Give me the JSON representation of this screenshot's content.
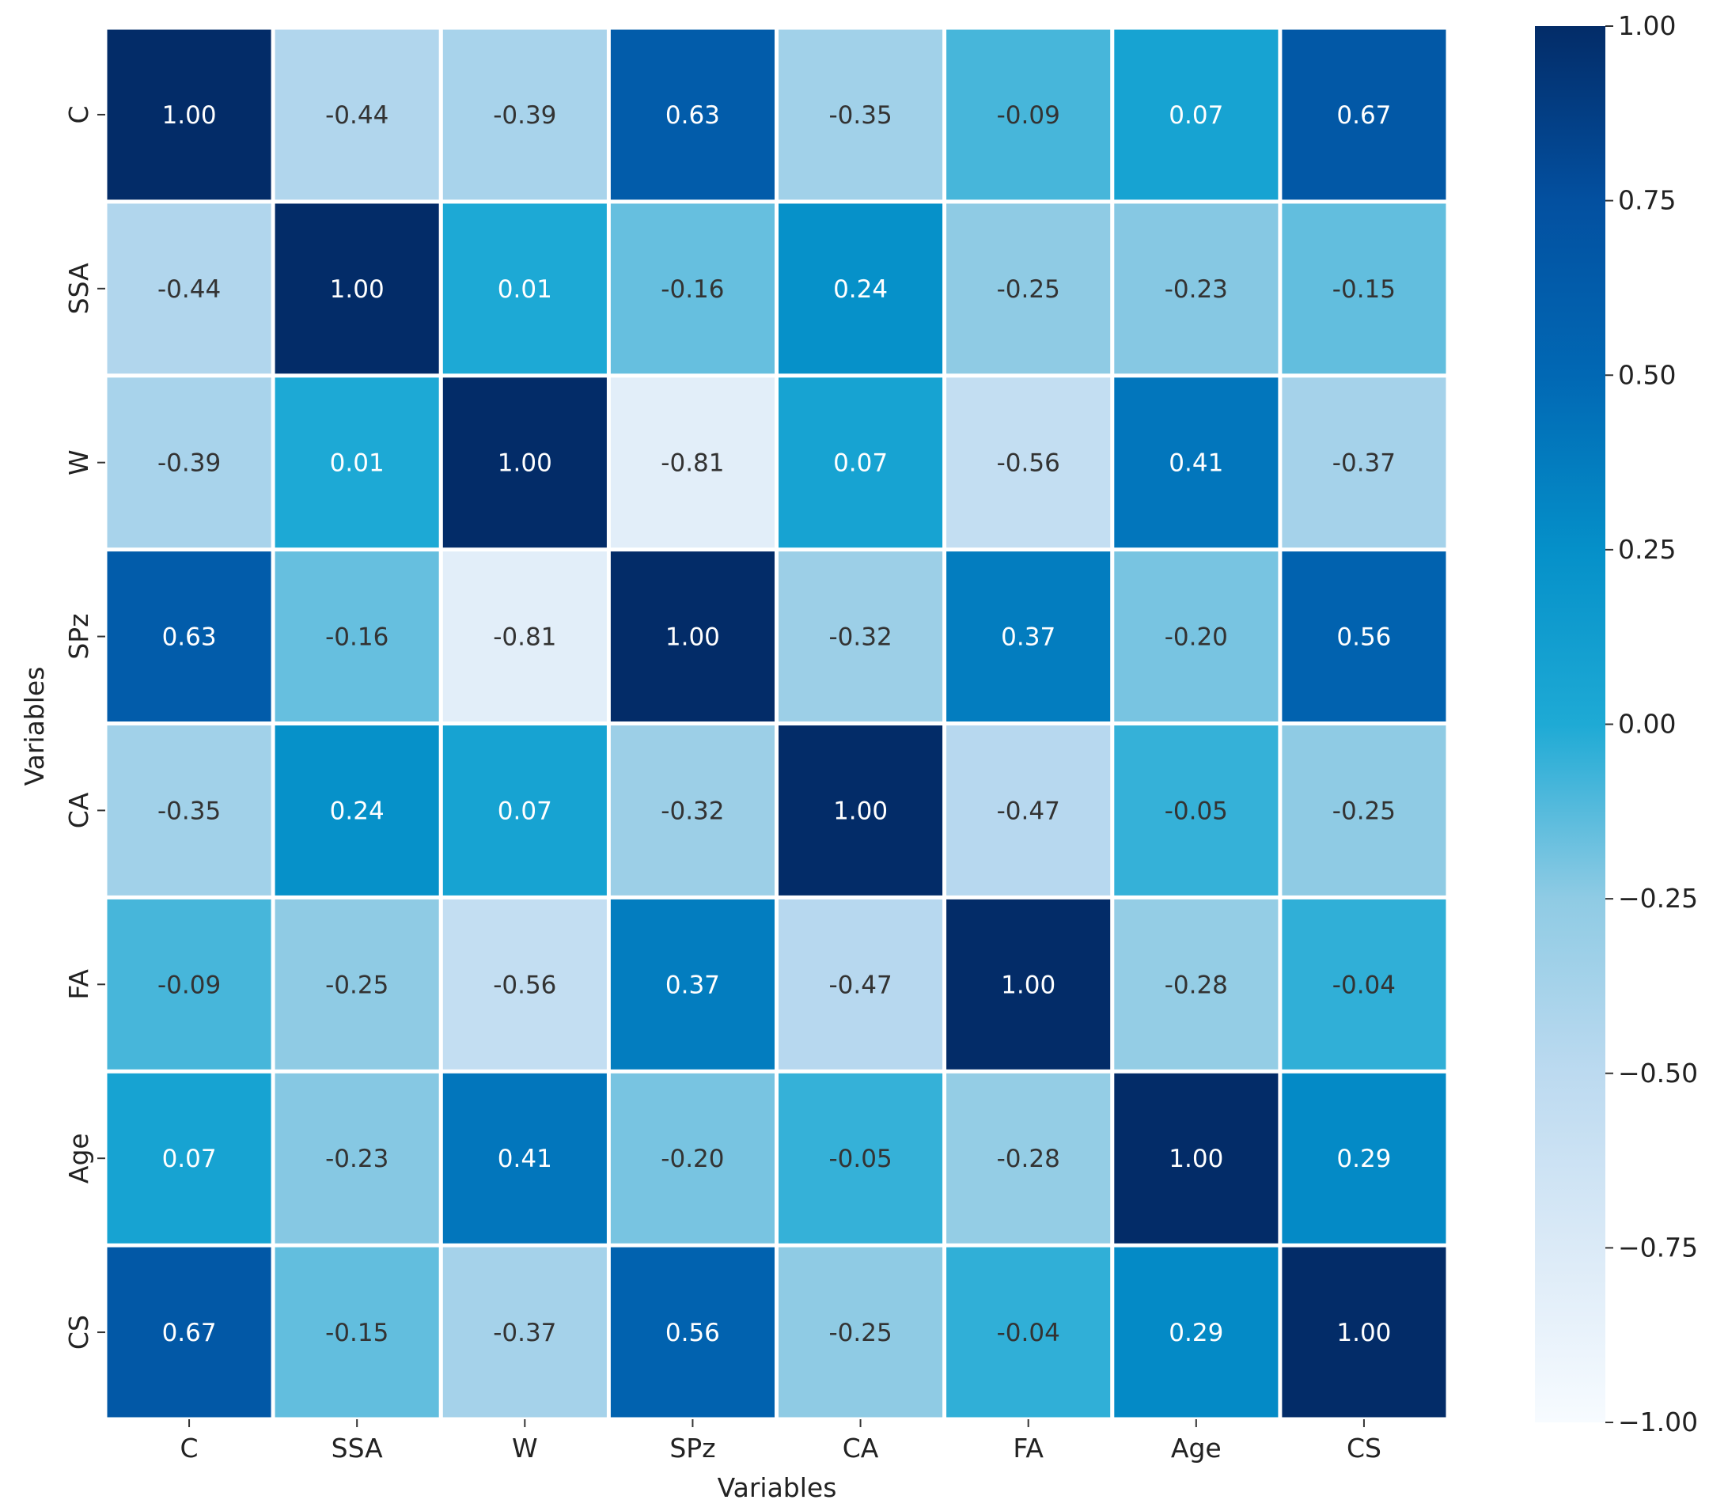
{
  "chart_data": {
    "type": "heatmap",
    "title": "",
    "xlabel": "Variables",
    "ylabel": "Variables",
    "categories": [
      "C",
      "SSA",
      "W",
      "SPz",
      "CA",
      "FA",
      "Age",
      "CS"
    ],
    "values": [
      [
        1.0,
        -0.44,
        -0.39,
        0.63,
        -0.35,
        -0.09,
        0.07,
        0.67
      ],
      [
        -0.44,
        1.0,
        0.01,
        -0.16,
        0.24,
        -0.25,
        -0.23,
        -0.15
      ],
      [
        -0.39,
        0.01,
        1.0,
        -0.81,
        0.07,
        -0.56,
        0.41,
        -0.37
      ],
      [
        0.63,
        -0.16,
        -0.81,
        1.0,
        -0.32,
        0.37,
        -0.2,
        0.56
      ],
      [
        -0.35,
        0.24,
        0.07,
        -0.32,
        1.0,
        -0.47,
        -0.05,
        -0.25
      ],
      [
        -0.09,
        -0.25,
        -0.56,
        0.37,
        -0.47,
        1.0,
        -0.28,
        -0.04
      ],
      [
        0.07,
        -0.23,
        0.41,
        -0.2,
        -0.05,
        -0.28,
        1.0,
        0.29
      ],
      [
        0.67,
        -0.15,
        -0.37,
        0.56,
        -0.25,
        -0.04,
        0.29,
        1.0
      ]
    ],
    "value_labels": [
      [
        "1.00",
        "-0.44",
        "-0.39",
        "0.63",
        "-0.35",
        "-0.09",
        "0.07",
        "0.67"
      ],
      [
        "-0.44",
        "1.00",
        "0.01",
        "-0.16",
        "0.24",
        "-0.25",
        "-0.23",
        "-0.15"
      ],
      [
        "-0.39",
        "0.01",
        "1.00",
        "-0.81",
        "0.07",
        "-0.56",
        "0.41",
        "-0.37"
      ],
      [
        "0.63",
        "-0.16",
        "-0.81",
        "1.00",
        "-0.32",
        "0.37",
        "-0.20",
        "0.56"
      ],
      [
        "-0.35",
        "0.24",
        "0.07",
        "-0.32",
        "1.00",
        "-0.47",
        "-0.05",
        "-0.25"
      ],
      [
        "-0.09",
        "-0.25",
        "-0.56",
        "0.37",
        "-0.47",
        "1.00",
        "-0.28",
        "-0.04"
      ],
      [
        "0.07",
        "-0.23",
        "0.41",
        "-0.20",
        "-0.05",
        "-0.28",
        "1.00",
        "0.29"
      ],
      [
        "0.67",
        "-0.15",
        "-0.37",
        "0.56",
        "-0.25",
        "-0.04",
        "0.29",
        "1.00"
      ]
    ],
    "colorbar": {
      "range": [
        -1.0,
        1.0
      ],
      "ticks": [
        1.0,
        0.75,
        0.5,
        0.25,
        0.0,
        -0.25,
        -0.5,
        -0.75,
        -1.0
      ],
      "tick_labels": [
        "1.00",
        "0.75",
        "0.50",
        "0.25",
        "0.00",
        "−0.25",
        "−0.50",
        "−0.75",
        "−1.00"
      ]
    },
    "colormap": {
      "name": "Blues-like",
      "stops": [
        {
          "value": -1.0,
          "color": "#f7fbff"
        },
        {
          "value": -0.75,
          "color": "#dbeaf7"
        },
        {
          "value": -0.5,
          "color": "#bcdaf0"
        },
        {
          "value": -0.25,
          "color": "#8fcbe4"
        },
        {
          "value": 0.0,
          "color": "#1eaad5"
        },
        {
          "value": 0.25,
          "color": "#0590c9"
        },
        {
          "value": 0.5,
          "color": "#0168b4"
        },
        {
          "value": 0.75,
          "color": "#0350a0"
        },
        {
          "value": 1.0,
          "color": "#032c68"
        }
      ]
    },
    "text_colors": {
      "dark": "#333333",
      "light": "#ffffff"
    },
    "grid_line_color": "#ffffff",
    "grid": false,
    "legend": "right colorbar"
  }
}
